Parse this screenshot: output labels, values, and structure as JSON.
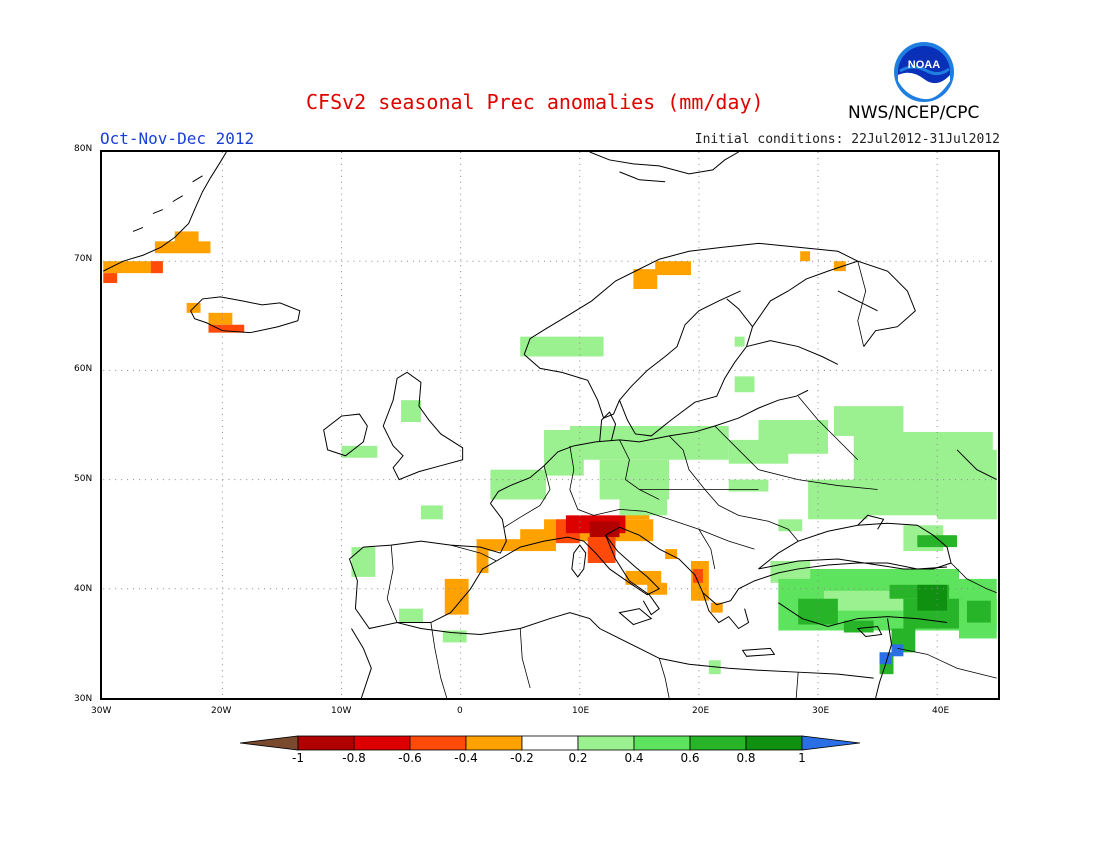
{
  "header": {
    "title": "CFSv2 seasonal Prec anomalies (mm/day)",
    "period": "Oct-Nov-Dec 2012",
    "initial_conditions": "Initial conditions: 22Jul2012-31Jul2012",
    "agency": "NWS/NCEP/CPC",
    "logo_text": "NOAA"
  },
  "map": {
    "extent": {
      "lon": [
        -30,
        45
      ],
      "lat": [
        30,
        80
      ]
    },
    "x_ticks": [
      "30W",
      "20W",
      "10W",
      "0",
      "10E",
      "20E",
      "30E",
      "40E"
    ],
    "y_ticks": [
      "80N",
      "70N",
      "60N",
      "50N",
      "40N",
      "30N"
    ],
    "anomaly_regions": [
      {
        "name": "Iceland south coast",
        "level": -0.4
      },
      {
        "name": "Greenland east coast",
        "level": -0.4
      },
      {
        "name": "Northern Norway",
        "level": -0.4
      },
      {
        "name": "Northern Italy",
        "level": -0.8
      },
      {
        "name": "Spain east coast",
        "level": -0.4
      },
      {
        "name": "Albania / Greece west",
        "level": -0.4
      },
      {
        "name": "Central Europe",
        "level": 0.2
      },
      {
        "name": "Western Russia",
        "level": 0.2
      },
      {
        "name": "Turkey",
        "level": 0.6
      },
      {
        "name": "Levant coast",
        "level": 1.0
      }
    ]
  },
  "colorbar": {
    "labels": [
      "-1",
      "-0.8",
      "-0.6",
      "-0.4",
      "-0.2",
      "0.2",
      "0.4",
      "0.6",
      "0.8",
      "1"
    ],
    "colors": {
      "below_min": "#7a4a2e",
      "bin_-1_-0.8": "#b00000",
      "bin_-0.8_-0.6": "#dd0000",
      "bin_-0.6_-0.4": "#ff4a0a",
      "bin_-0.4_-0.2": "#ffa200",
      "bin_-0.2_0.2": "#ffffff",
      "bin_0.2_0.4": "#9bf08f",
      "bin_0.4_0.6": "#5ee35e",
      "bin_0.6_0.8": "#28b428",
      "bin_0.8_1": "#109010",
      "above_max": "#2b6fe6"
    }
  }
}
